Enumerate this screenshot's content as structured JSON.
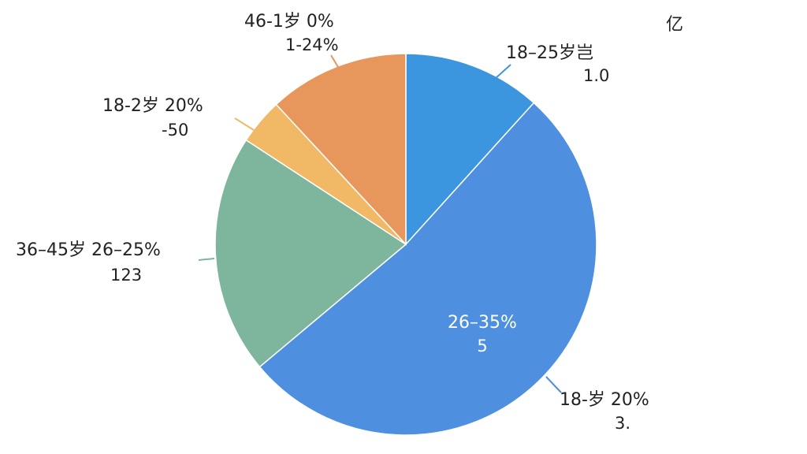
{
  "chart_data": {
    "type": "pie",
    "unit_note": "亿",
    "categories": [
      "18–25岁岂",
      "26–35%",
      "36–45岁 26–25%",
      "18-2岁 20%",
      "46-1岁 0%"
    ],
    "sublabels": [
      "1.0",
      "5",
      "123",
      "-50",
      "1-24%"
    ],
    "extra_label": {
      "text": "18-岁 20%",
      "subtext": "3."
    },
    "values": [
      11.7,
      52.2,
      20.3,
      3.9,
      11.9
    ],
    "colors": [
      "#3c95df",
      "#4e8fe0",
      "#7db59d",
      "#f1b866",
      "#e7975b"
    ]
  }
}
